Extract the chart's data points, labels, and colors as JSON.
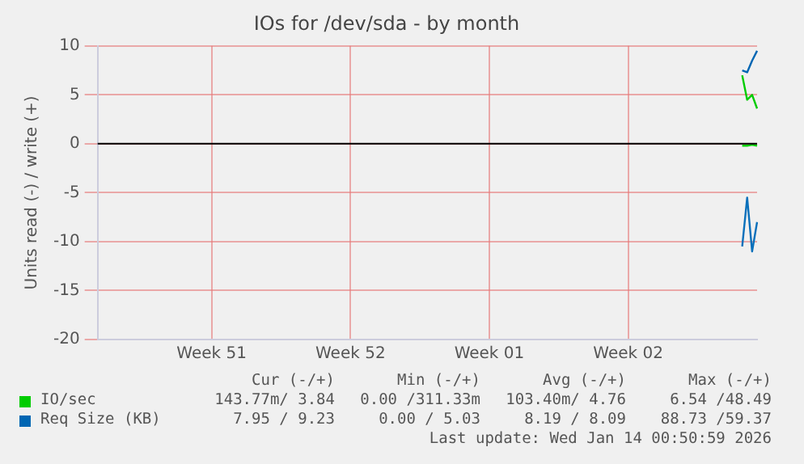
{
  "chart_data": {
    "type": "line",
    "title": "IOs for /dev/sda - by month",
    "ylabel": "Units read (-) / write (+)",
    "categories": [
      null,
      null,
      null,
      null,
      null,
      null,
      null,
      null,
      null,
      null,
      null,
      null,
      null,
      null,
      null,
      null,
      null,
      null,
      null,
      null,
      null,
      null,
      null,
      "Week 51",
      null,
      null,
      null,
      null,
      null,
      null,
      null,
      null,
      null,
      null,
      null,
      null,
      null,
      null,
      null,
      null,
      null,
      null,
      null,
      null,
      null,
      null,
      null,
      null,
      null,
      null,
      null,
      "Week 52",
      null,
      null,
      null,
      null,
      null,
      null,
      null,
      null,
      null,
      null,
      null,
      null,
      null,
      null,
      null,
      null,
      null,
      null,
      null,
      null,
      null,
      null,
      null,
      null,
      null,
      null,
      null,
      "Week 01",
      null,
      null,
      null,
      null,
      null,
      null,
      null,
      null,
      null,
      null,
      null,
      null,
      null,
      null,
      null,
      null,
      null,
      null,
      null,
      null,
      null,
      null,
      null,
      null,
      null,
      null,
      null,
      "Week 02",
      null,
      null,
      null,
      null,
      null,
      null,
      null,
      null,
      null,
      null,
      null,
      null,
      null,
      null,
      null,
      null,
      null,
      null,
      null,
      null,
      null,
      null,
      null,
      null,
      null,
      null
    ],
    "ylim": [
      -20,
      10
    ],
    "yticks": [
      -20,
      -15,
      -10,
      -5,
      0,
      5,
      10
    ],
    "grid": true,
    "legend": "bottom",
    "series": [
      {
        "name": "IO/sec",
        "color": "#00cc00",
        "values": [
          null,
          null,
          null,
          null,
          null,
          null,
          null,
          null,
          null,
          null,
          null,
          null,
          null,
          null,
          null,
          null,
          null,
          null,
          null,
          null,
          null,
          null,
          null,
          null,
          null,
          null,
          null,
          null,
          null,
          null,
          null,
          null,
          null,
          null,
          null,
          null,
          null,
          null,
          null,
          null,
          null,
          null,
          null,
          null,
          null,
          null,
          null,
          null,
          null,
          null,
          null,
          null,
          null,
          null,
          null,
          null,
          null,
          null,
          null,
          null,
          null,
          null,
          null,
          null,
          null,
          null,
          null,
          null,
          null,
          null,
          null,
          null,
          null,
          null,
          null,
          null,
          null,
          null,
          null,
          null,
          null,
          null,
          null,
          null,
          null,
          null,
          null,
          null,
          null,
          null,
          null,
          null,
          null,
          null,
          null,
          null,
          null,
          null,
          null,
          null,
          null,
          null,
          null,
          null,
          null,
          null,
          null,
          null,
          null,
          null,
          null,
          null,
          null,
          null,
          null,
          null,
          null,
          null,
          null,
          null,
          null,
          null,
          null,
          null,
          null,
          null,
          null,
          null,
          null,
          null,
          7,
          4.5,
          5,
          3.6
        ]
      },
      {
        "color": "#0ad40a",
        "values": [
          null,
          null,
          null,
          null,
          null,
          null,
          null,
          null,
          null,
          null,
          null,
          null,
          null,
          null,
          null,
          null,
          null,
          null,
          null,
          null,
          null,
          null,
          null,
          null,
          null,
          null,
          null,
          null,
          null,
          null,
          null,
          null,
          null,
          null,
          null,
          null,
          null,
          null,
          null,
          null,
          null,
          null,
          null,
          null,
          null,
          null,
          null,
          null,
          null,
          null,
          null,
          null,
          null,
          null,
          null,
          null,
          null,
          null,
          null,
          null,
          null,
          null,
          null,
          null,
          null,
          null,
          null,
          null,
          null,
          null,
          null,
          null,
          null,
          null,
          null,
          null,
          null,
          null,
          null,
          null,
          null,
          null,
          null,
          null,
          null,
          null,
          null,
          null,
          null,
          null,
          null,
          null,
          null,
          null,
          null,
          null,
          null,
          null,
          null,
          null,
          null,
          null,
          null,
          null,
          null,
          null,
          null,
          null,
          null,
          null,
          null,
          null,
          null,
          null,
          null,
          null,
          null,
          null,
          null,
          null,
          null,
          null,
          null,
          null,
          null,
          null,
          null,
          null,
          null,
          null,
          -0.2,
          -0.2,
          -0.1,
          -0.2
        ]
      },
      {
        "name": "Req Size (KB)",
        "color": "#0066b3",
        "values": [
          null,
          null,
          null,
          null,
          null,
          null,
          null,
          null,
          null,
          null,
          null,
          null,
          null,
          null,
          null,
          null,
          null,
          null,
          null,
          null,
          null,
          null,
          null,
          null,
          null,
          null,
          null,
          null,
          null,
          null,
          null,
          null,
          null,
          null,
          null,
          null,
          null,
          null,
          null,
          null,
          null,
          null,
          null,
          null,
          null,
          null,
          null,
          null,
          null,
          null,
          null,
          null,
          null,
          null,
          null,
          null,
          null,
          null,
          null,
          null,
          null,
          null,
          null,
          null,
          null,
          null,
          null,
          null,
          null,
          null,
          null,
          null,
          null,
          null,
          null,
          null,
          null,
          null,
          null,
          null,
          null,
          null,
          null,
          null,
          null,
          null,
          null,
          null,
          null,
          null,
          null,
          null,
          null,
          null,
          null,
          null,
          null,
          null,
          null,
          null,
          null,
          null,
          null,
          null,
          null,
          null,
          null,
          null,
          null,
          null,
          null,
          null,
          null,
          null,
          null,
          null,
          null,
          null,
          null,
          null,
          null,
          null,
          null,
          null,
          null,
          null,
          null,
          null,
          null,
          null,
          7.5,
          7.3,
          8.5,
          9.5
        ]
      },
      {
        "color": "#0a70bb",
        "values": [
          null,
          null,
          null,
          null,
          null,
          null,
          null,
          null,
          null,
          null,
          null,
          null,
          null,
          null,
          null,
          null,
          null,
          null,
          null,
          null,
          null,
          null,
          null,
          null,
          null,
          null,
          null,
          null,
          null,
          null,
          null,
          null,
          null,
          null,
          null,
          null,
          null,
          null,
          null,
          null,
          null,
          null,
          null,
          null,
          null,
          null,
          null,
          null,
          null,
          null,
          null,
          null,
          null,
          null,
          null,
          null,
          null,
          null,
          null,
          null,
          null,
          null,
          null,
          null,
          null,
          null,
          null,
          null,
          null,
          null,
          null,
          null,
          null,
          null,
          null,
          null,
          null,
          null,
          null,
          null,
          null,
          null,
          null,
          null,
          null,
          null,
          null,
          null,
          null,
          null,
          null,
          null,
          null,
          null,
          null,
          null,
          null,
          null,
          null,
          null,
          null,
          null,
          null,
          null,
          null,
          null,
          null,
          null,
          null,
          null,
          null,
          null,
          null,
          null,
          null,
          null,
          null,
          null,
          null,
          null,
          null,
          null,
          null,
          null,
          null,
          null,
          null,
          null,
          null,
          null,
          -10.5,
          -5.5,
          -11,
          -8
        ]
      }
    ],
    "ref_lines": [
      {
        "axis": "y",
        "value": 0,
        "color": "#000000"
      }
    ],
    "annotations": [
      "Cur (-/+)",
      "Min (-/+)",
      "Avg (-/+)",
      "Max (-/+)",
      "143.77m/ 3.84",
      "0.00 /311.33m",
      "103.40m/ 4.76",
      "6.54 /48.49",
      "7.95 / 9.23",
      "0.00 / 5.03",
      "8.19 / 8.09",
      "88.73 /59.37",
      "Last update: Wed Jan 14 00:50:59 2026"
    ]
  }
}
